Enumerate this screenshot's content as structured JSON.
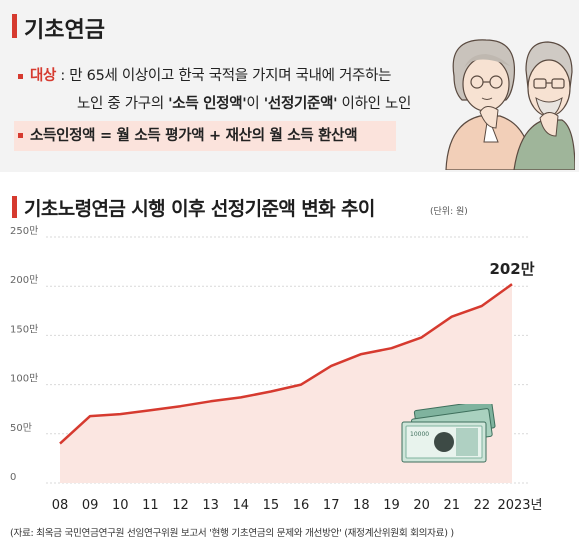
{
  "header": {
    "title": "기초연금",
    "target_label": "대상",
    "target_line1": " : 만 65세 이상이고 한국 국적을 가지며 국내에 거주하는",
    "target_line2_pre": "노인 중 가구의 ",
    "target_line2_term1": "'소득 인정액'",
    "target_line2_mid": "이 ",
    "target_line2_term2": "'선정기준액'",
    "target_line2_post": " 이하인 노인",
    "formula": "소득인정액 = 월 소득 평가액 + 재산의 월 소득 환산액"
  },
  "chart_data": {
    "type": "area",
    "title": "기초노령연금 시행 이후 선정기준액 변화 추이",
    "unit_note": "(단위: 원)",
    "xlabel": "",
    "ylabel": "",
    "ylim": [
      0,
      250
    ],
    "y_ticks": [
      "0",
      "50만",
      "100만",
      "150만",
      "200만",
      "250만"
    ],
    "categories": [
      "08",
      "09",
      "10",
      "11",
      "12",
      "13",
      "14",
      "15",
      "16",
      "17",
      "18",
      "19",
      "20",
      "21",
      "22",
      "2023년"
    ],
    "values": [
      40,
      68,
      70,
      74,
      78,
      83,
      87,
      93,
      100,
      119,
      131,
      137,
      148,
      169,
      180,
      202
    ],
    "annotation": "202만",
    "line_color": "#d63a2f",
    "fill_color": "#fbe6e1",
    "grid": true,
    "legend": "none"
  },
  "source": "(자료: 최옥금 국민연금연구원 선임연구위원 보고서 '현행 기초연금의 문제와 개선방안' (재정계산위원회 회의자료) )",
  "colors": {
    "accent": "#d63a2f",
    "highlight": "#fbe3dc",
    "header_bg": "#f3f3f3"
  }
}
